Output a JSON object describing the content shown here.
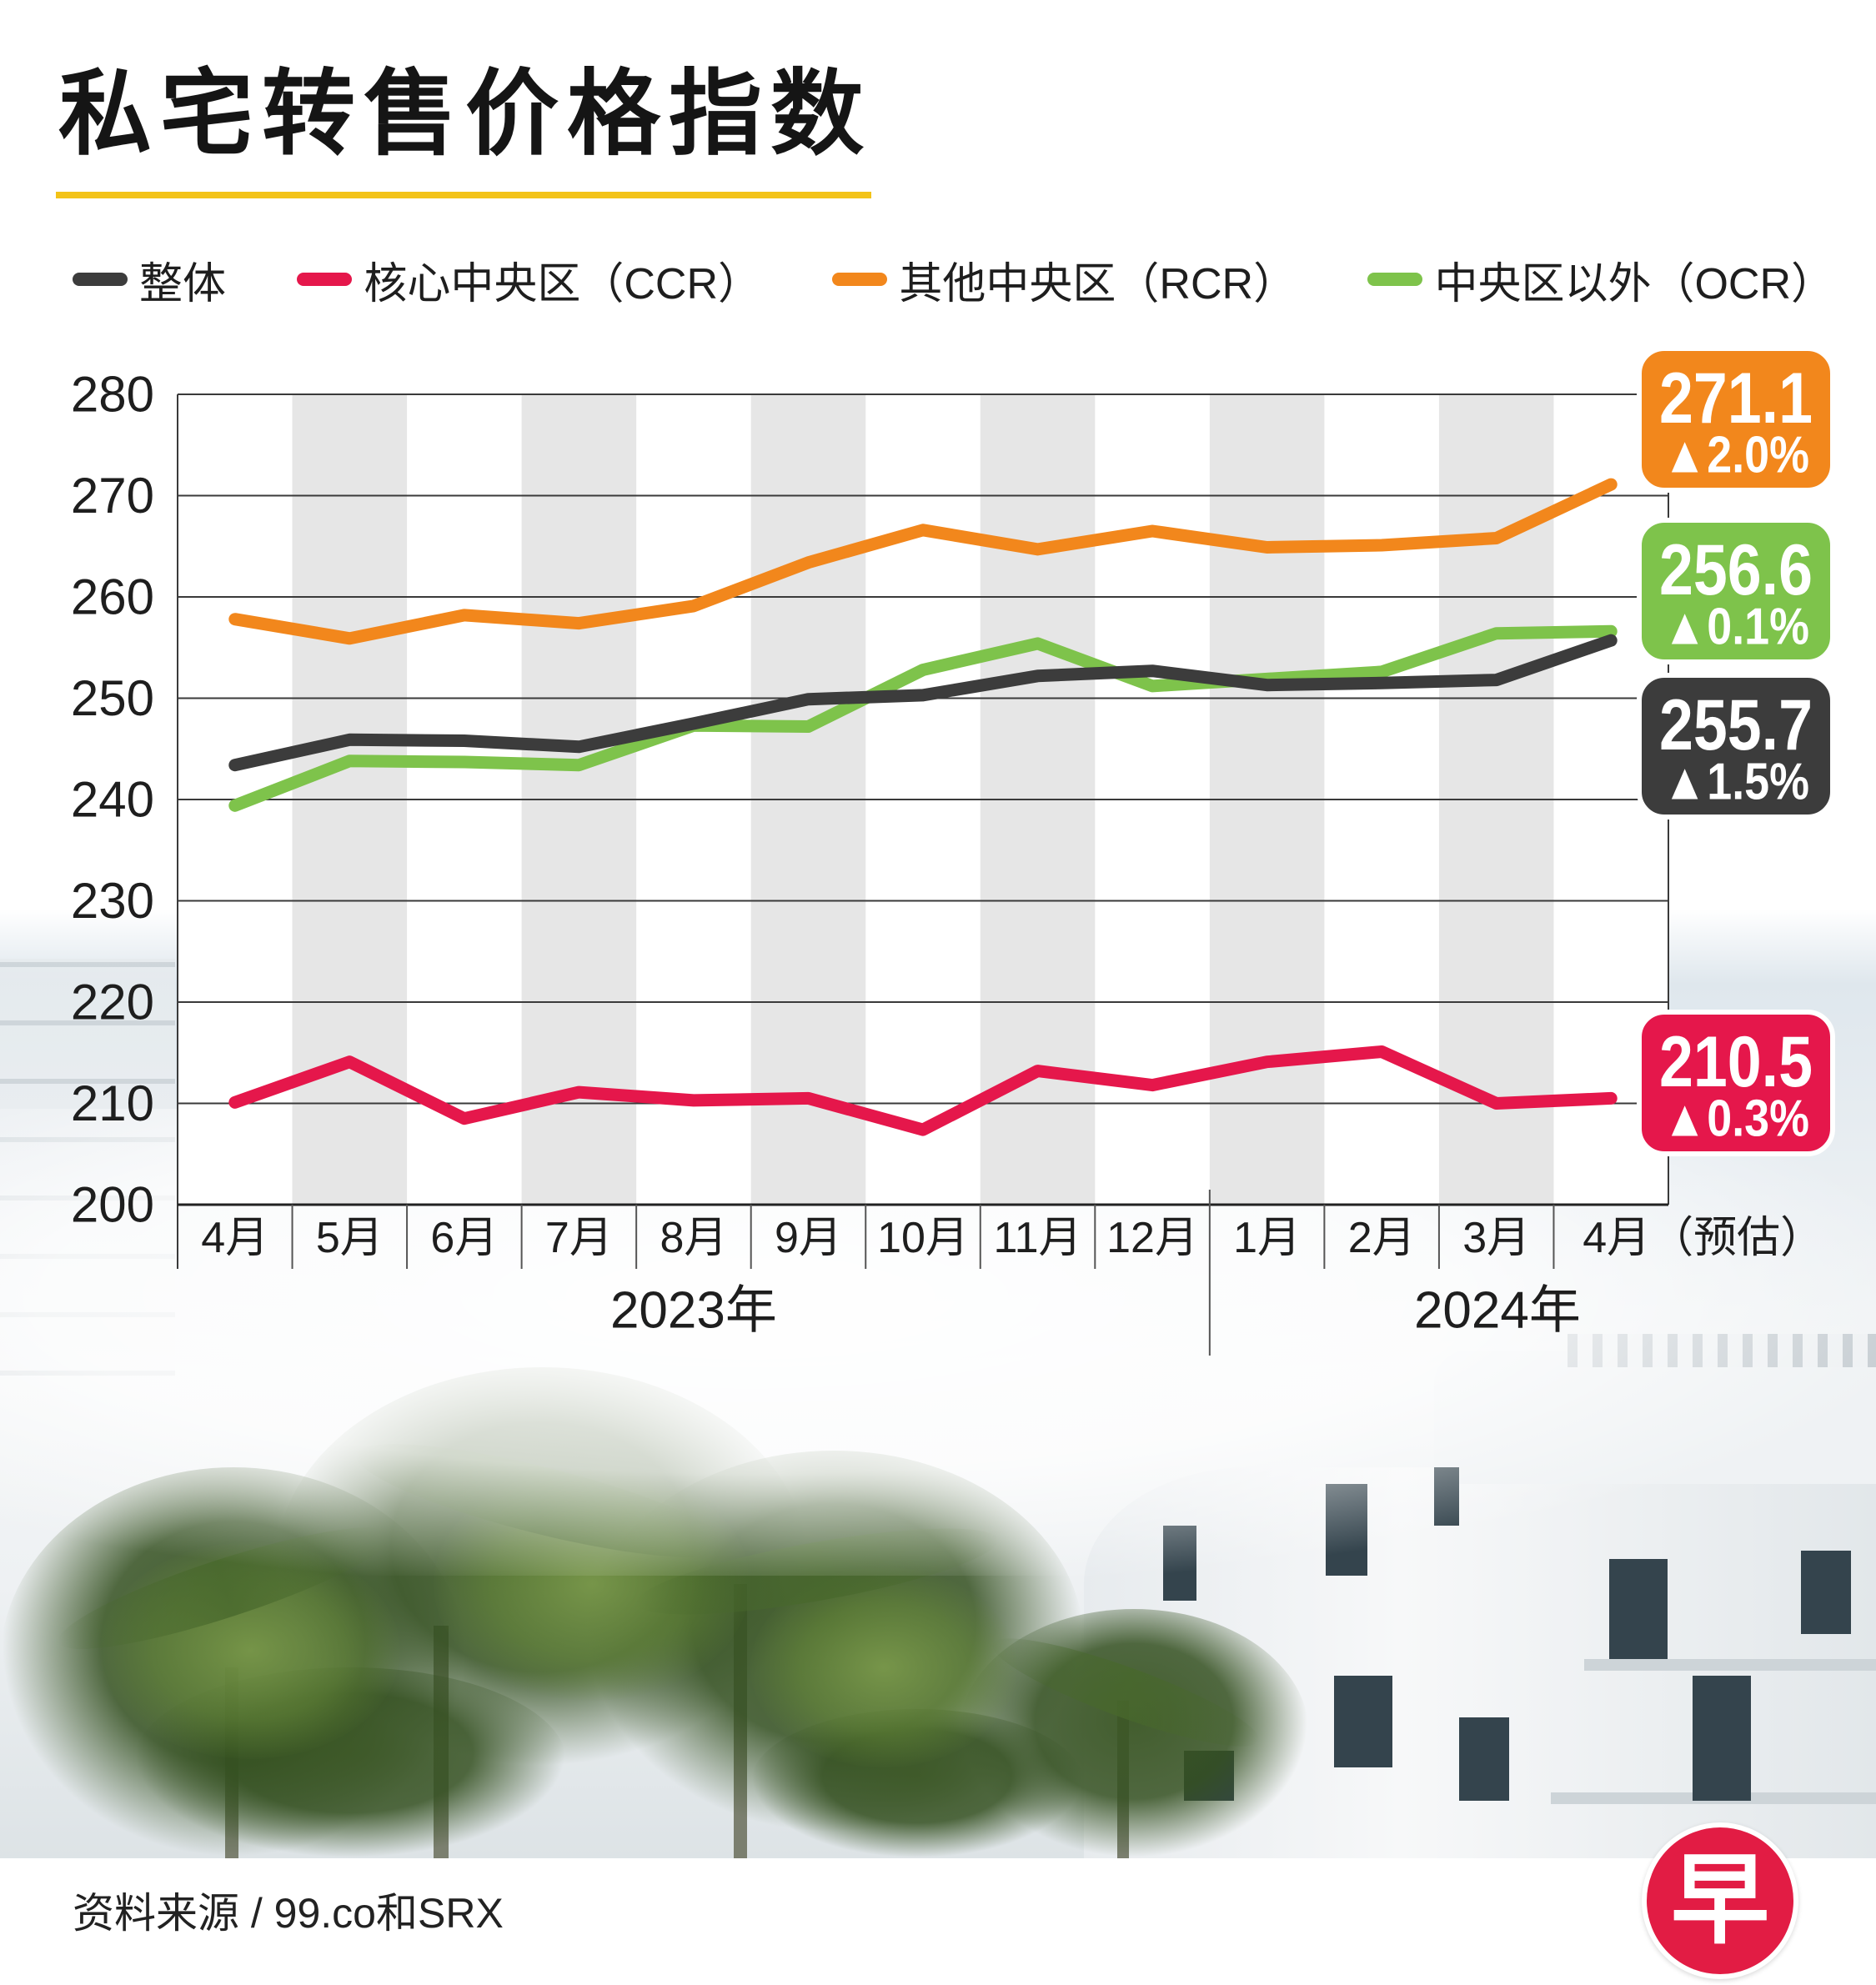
{
  "chart_data": {
    "type": "line",
    "title": "私宅转售价格指数",
    "xlabel": "",
    "ylabel": "",
    "categories": [
      "4月",
      "5月",
      "6月",
      "7月",
      "8月",
      "9月",
      "10月",
      "11月",
      "12月",
      "1月",
      "2月",
      "3月",
      "4月（预估）"
    ],
    "years": [
      {
        "label": "2023年",
        "months": 9
      },
      {
        "label": "2024年",
        "months": 4
      }
    ],
    "ylim": [
      200,
      280
    ],
    "yticks": [
      200,
      210,
      220,
      230,
      240,
      250,
      260,
      270,
      280
    ],
    "grid": true,
    "legend": "top",
    "series": [
      {
        "name": "整体",
        "color": "#3c3c3c",
        "values": [
          243.4,
          245.9,
          245.8,
          245.2,
          247.5,
          249.9,
          250.3,
          252.2,
          252.7,
          251.3,
          251.5,
          251.8,
          255.7
        ],
        "end_value": "255.7",
        "end_change": "▲1.5%"
      },
      {
        "name": "核心中央区（CCR）",
        "color": "#e5174b",
        "values": [
          210.1,
          214.1,
          208.5,
          211.1,
          210.3,
          210.5,
          207.4,
          213.2,
          211.8,
          214.1,
          215.1,
          210.0,
          210.5
        ],
        "end_value": "210.5",
        "end_change": "▲0.3%"
      },
      {
        "name": "其他中央区（RCR）",
        "color": "#f2871c",
        "values": [
          257.8,
          255.9,
          258.2,
          257.4,
          259.1,
          263.4,
          266.6,
          264.7,
          266.5,
          264.9,
          265.1,
          265.8,
          271.1
        ],
        "end_value": "271.1",
        "end_change": "▲2.0%"
      },
      {
        "name": "中央区以外（OCR）",
        "color": "#7ec34b",
        "values": [
          239.4,
          243.8,
          243.7,
          243.4,
          247.3,
          247.2,
          252.8,
          255.4,
          251.2,
          251.9,
          252.6,
          256.4,
          256.6
        ],
        "end_value": "256.6",
        "end_change": "▲0.1%"
      }
    ]
  },
  "title_underline_color": "#f3c318",
  "source": "资料来源 / 99.co和SRX",
  "logo": {
    "text": "早",
    "color": "#e21c44"
  }
}
